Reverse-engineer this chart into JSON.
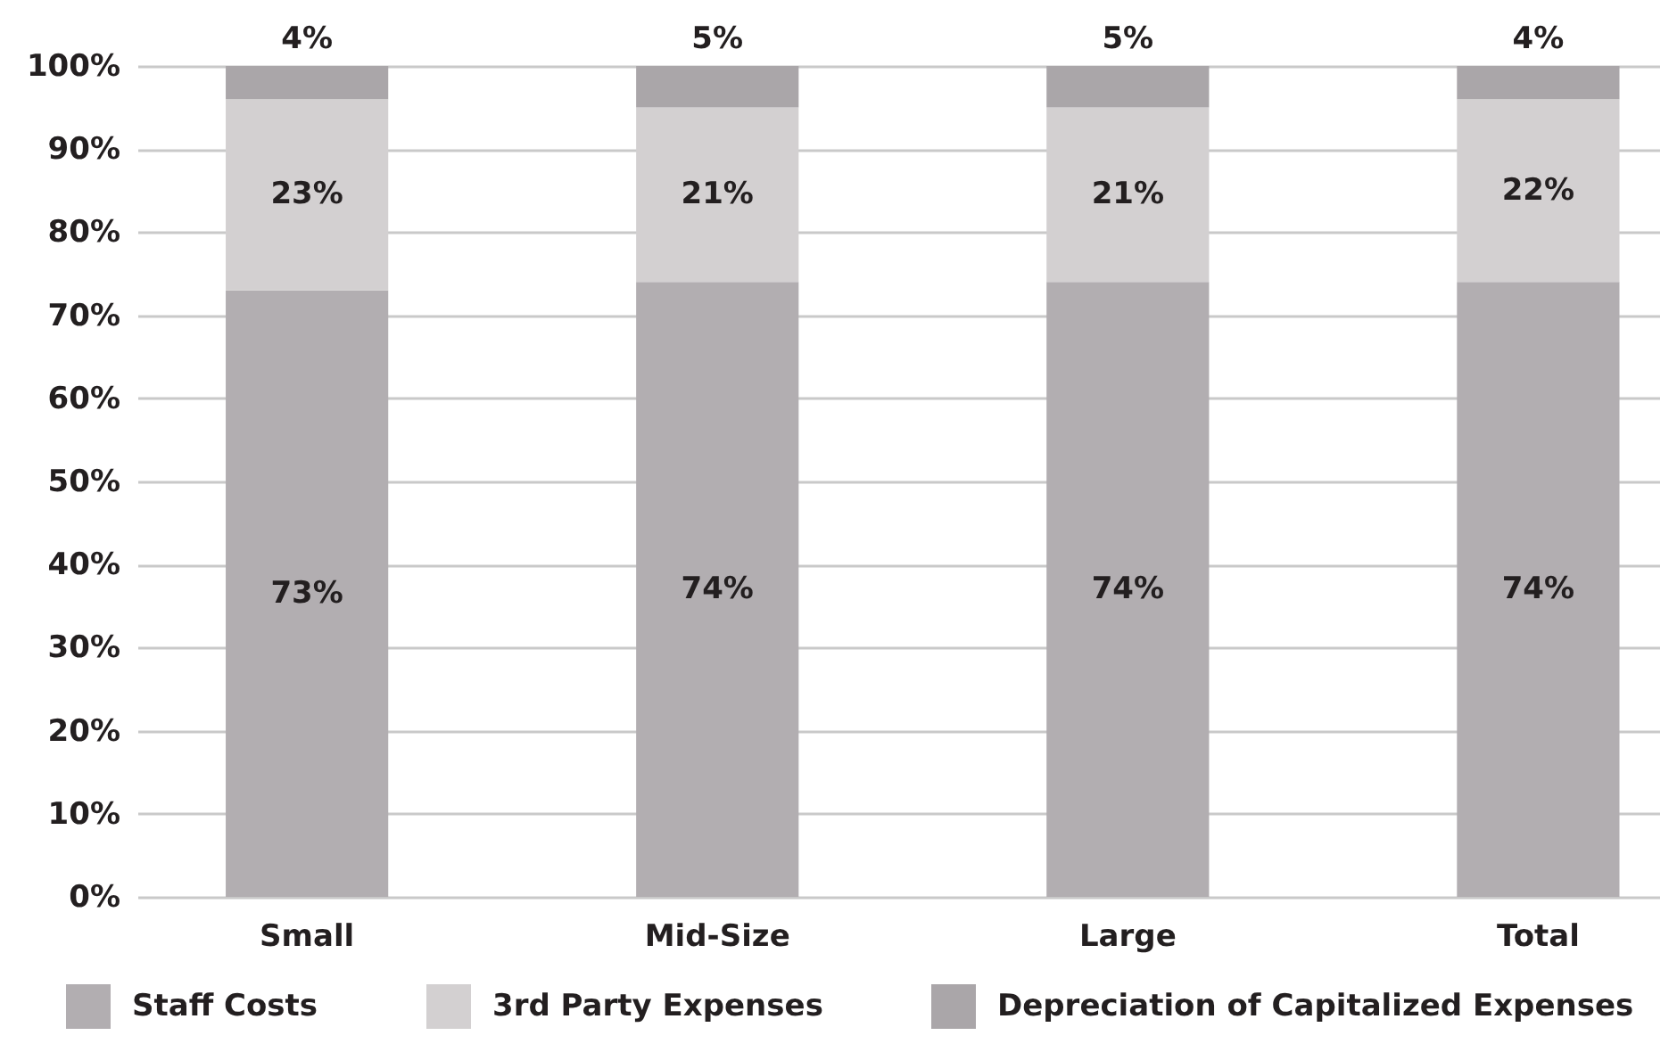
{
  "chart_data": {
    "type": "bar",
    "stacked": true,
    "categories": [
      "Small",
      "Mid-Size",
      "Large",
      "Total"
    ],
    "series": [
      {
        "name": "Staff Costs",
        "color": "#b2aeb1",
        "values": [
          73,
          74,
          74,
          74
        ],
        "value_labels": [
          "73%",
          "74%",
          "74%",
          "74%"
        ]
      },
      {
        "name": "3rd Party Expenses",
        "color": "#d3d0d1",
        "values": [
          23,
          21,
          21,
          22
        ],
        "value_labels": [
          "23%",
          "21%",
          "21%",
          "22%"
        ]
      },
      {
        "name": "Depreciation of Capitalized Expenses",
        "color": "#aaa6a9",
        "values": [
          4,
          5,
          5,
          4
        ],
        "value_labels": [
          "4%",
          "5%",
          "5%",
          "4%"
        ]
      }
    ],
    "ylim": [
      0,
      100
    ],
    "yticks": [
      {
        "value": 0,
        "label": "0%"
      },
      {
        "value": 10,
        "label": "10%"
      },
      {
        "value": 20,
        "label": "20%"
      },
      {
        "value": 30,
        "label": "30%"
      },
      {
        "value": 40,
        "label": "40%"
      },
      {
        "value": 50,
        "label": "50%"
      },
      {
        "value": 60,
        "label": "60%"
      },
      {
        "value": 70,
        "label": "70%"
      },
      {
        "value": 80,
        "label": "80%"
      },
      {
        "value": 90,
        "label": "90%"
      },
      {
        "value": 100,
        "label": "100%"
      }
    ],
    "grid": "y",
    "legend": "bottom"
  }
}
